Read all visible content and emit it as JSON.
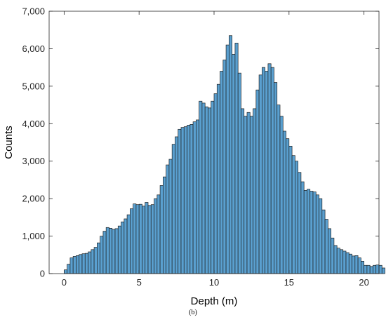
{
  "chart_data": {
    "type": "bar",
    "xlabel": "Depth (m)",
    "ylabel": "Counts",
    "xlim": [
      -1,
      21
    ],
    "ylim": [
      0,
      7000
    ],
    "x_ticks": [
      0,
      5,
      10,
      15,
      20
    ],
    "x_tick_labels": [
      "0",
      "5",
      "10",
      "15",
      "20"
    ],
    "y_ticks": [
      0,
      1000,
      2000,
      3000,
      4000,
      5000,
      6000,
      7000
    ],
    "y_tick_labels": [
      "0",
      "1,000",
      "2,000",
      "3,000",
      "4,000",
      "5,000",
      "6,000",
      "7,000"
    ],
    "grid": false,
    "bar_color": "#5aa0d0",
    "edge_color": "#1f1f1f",
    "bin_start": 0,
    "bin_width": 0.2,
    "values": [
      100,
      250,
      420,
      460,
      480,
      510,
      530,
      540,
      580,
      640,
      700,
      820,
      1000,
      1130,
      1230,
      1210,
      1180,
      1200,
      1270,
      1380,
      1460,
      1570,
      1730,
      1860,
      1840,
      1850,
      1800,
      1900,
      1820,
      1840,
      2000,
      2100,
      2350,
      2580,
      2900,
      3050,
      3450,
      3650,
      3850,
      3900,
      3920,
      3960,
      3980,
      4050,
      4100,
      4600,
      4550,
      4450,
      4420,
      4600,
      4800,
      5050,
      5400,
      5700,
      6100,
      6350,
      5850,
      6150,
      5350,
      4400,
      4200,
      4300,
      4200,
      4400,
      4900,
      5300,
      5500,
      5400,
      5600,
      5500,
      5100,
      4500,
      4200,
      3800,
      3600,
      3400,
      3150,
      3000,
      2700,
      2450,
      2220,
      2250,
      2200,
      2180,
      2100,
      2000,
      1700,
      1450,
      1200,
      950,
      750,
      680,
      640,
      600,
      560,
      520,
      470,
      480,
      420,
      330,
      220,
      220,
      190,
      220,
      230,
      220,
      150
    ]
  },
  "caption": "(b)"
}
